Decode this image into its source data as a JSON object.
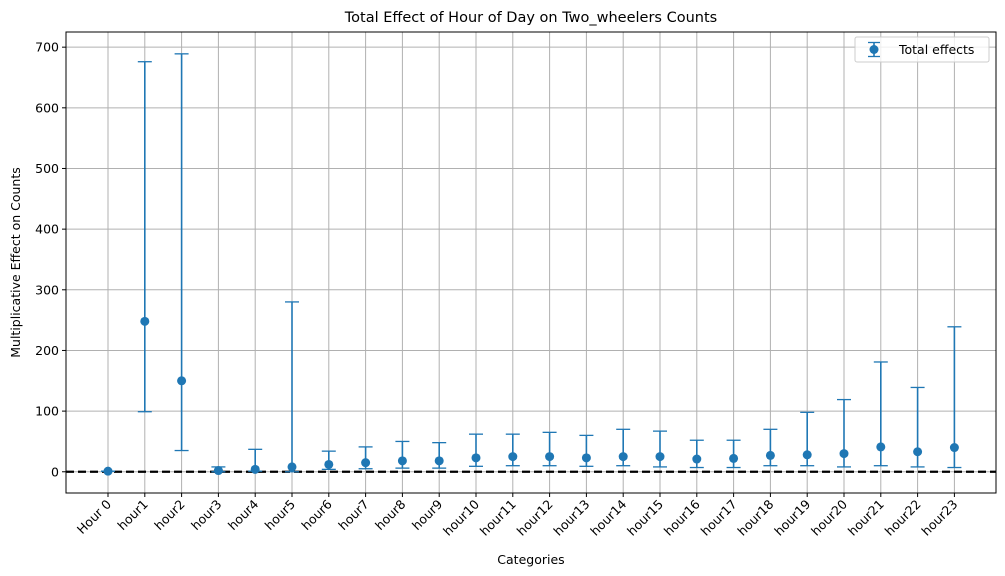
{
  "chart_data": {
    "type": "scatter",
    "title": "Total Effect of Hour of Day on Two_wheelers Counts",
    "xlabel": "Categories",
    "ylabel": "Multiplicative Effect on Counts",
    "ylim": [
      -35,
      725
    ],
    "yticks": [
      0,
      100,
      200,
      300,
      400,
      500,
      600,
      700
    ],
    "grid": true,
    "legend": {
      "placement": "top-right",
      "entries": [
        "Total effects"
      ]
    },
    "reference_line": {
      "y": 0,
      "style": "dashed",
      "color": "#000000"
    },
    "colors": {
      "series": "#1f77b4",
      "grid": "#b0b0b0"
    },
    "categories": [
      "Hour 0",
      "hour1",
      "hour2",
      "hour3",
      "hour4",
      "hour5",
      "hour6",
      "hour7",
      "hour8",
      "hour9",
      "hour10",
      "hour11",
      "hour12",
      "hour13",
      "hour14",
      "hour15",
      "hour16",
      "hour17",
      "hour18",
      "hour19",
      "hour20",
      "hour21",
      "hour22",
      "hour23"
    ],
    "series": [
      {
        "name": "Total effects",
        "values": [
          1,
          248,
          150,
          2,
          4,
          8,
          12,
          15,
          18,
          18,
          23,
          25,
          25,
          23,
          25,
          25,
          21,
          22,
          27,
          28,
          30,
          41,
          33,
          40
        ],
        "lower": [
          1,
          99,
          35,
          0,
          1,
          0,
          4,
          5,
          6,
          6,
          9,
          10,
          10,
          9,
          10,
          8,
          7,
          7,
          10,
          10,
          8,
          10,
          8,
          7
        ],
        "upper": [
          1,
          676,
          689,
          8,
          37,
          280,
          34,
          41,
          50,
          48,
          62,
          62,
          65,
          60,
          70,
          67,
          52,
          52,
          70,
          98,
          119,
          181,
          139,
          239
        ]
      }
    ]
  }
}
